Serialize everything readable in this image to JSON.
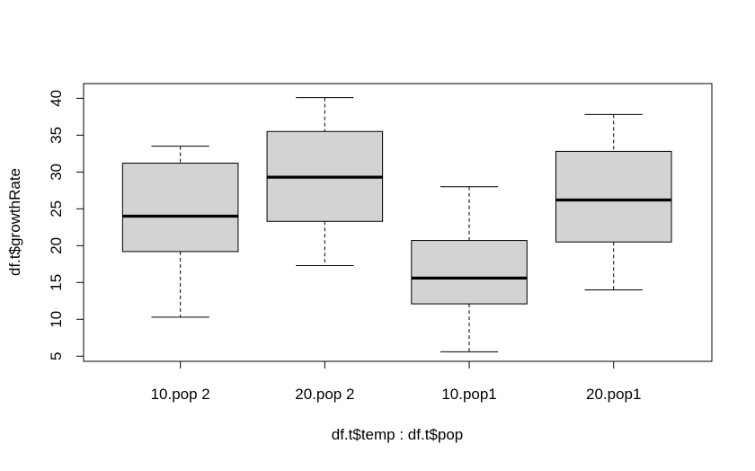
{
  "chart_data": {
    "type": "box",
    "title": "",
    "xlabel": "df.t$temp : df.t$pop",
    "ylabel": "df.t$growthRate",
    "ylim": [
      4.3,
      42.0
    ],
    "yticks": [
      5,
      10,
      15,
      20,
      25,
      30,
      35,
      40
    ],
    "categories": [
      "10.pop 2",
      "20.pop 2",
      "10.pop1",
      "20.pop1"
    ],
    "boxes": [
      {
        "category": "10.pop 2",
        "min": 10.3,
        "q1": 19.2,
        "median": 24.0,
        "q3": 31.2,
        "max": 33.5
      },
      {
        "category": "20.pop 2",
        "min": 17.3,
        "q1": 23.3,
        "median": 29.3,
        "q3": 35.5,
        "max": 40.1
      },
      {
        "category": "10.pop1",
        "min": 5.6,
        "q1": 12.1,
        "median": 15.6,
        "q3": 20.7,
        "max": 28.0
      },
      {
        "category": "20.pop1",
        "min": 14.0,
        "q1": 20.5,
        "median": 26.2,
        "q3": 32.8,
        "max": 37.8
      }
    ],
    "box_fill": "#d3d3d3",
    "grid": false,
    "legend": "none"
  }
}
